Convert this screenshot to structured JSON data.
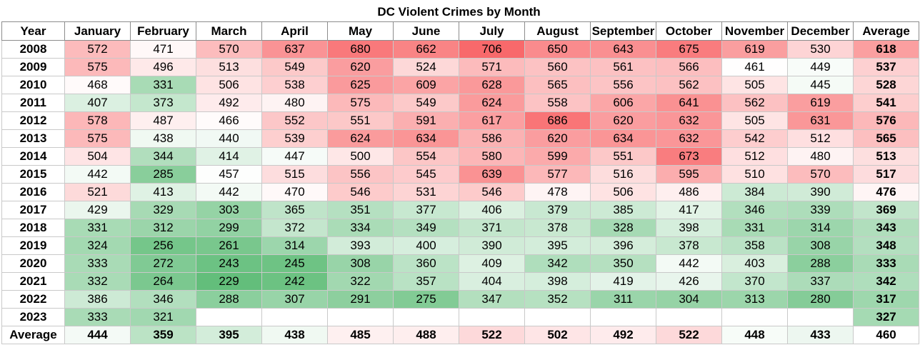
{
  "chart_data": {
    "type": "table",
    "title": "DC Violent Crimes by Month",
    "year_header": "Year",
    "average_label": "Average",
    "months": [
      "January",
      "February",
      "March",
      "April",
      "May",
      "June",
      "July",
      "August",
      "September",
      "October",
      "November",
      "December"
    ],
    "rows": [
      {
        "year": "2008",
        "values": [
          572,
          471,
          570,
          637,
          680,
          662,
          706,
          650,
          643,
          675,
          619,
          530
        ],
        "average": 618
      },
      {
        "year": "2009",
        "values": [
          575,
          496,
          513,
          549,
          620,
          524,
          571,
          560,
          561,
          566,
          461,
          449
        ],
        "average": 537
      },
      {
        "year": "2010",
        "values": [
          468,
          331,
          506,
          538,
          625,
          609,
          628,
          565,
          556,
          562,
          505,
          445
        ],
        "average": 528
      },
      {
        "year": "2011",
        "values": [
          407,
          373,
          492,
          480,
          575,
          549,
          624,
          558,
          606,
          641,
          562,
          619
        ],
        "average": 541
      },
      {
        "year": "2012",
        "values": [
          578,
          487,
          466,
          552,
          551,
          591,
          617,
          686,
          620,
          632,
          505,
          631
        ],
        "average": 576
      },
      {
        "year": "2013",
        "values": [
          575,
          438,
          440,
          539,
          624,
          634,
          586,
          620,
          634,
          632,
          542,
          512
        ],
        "average": 565
      },
      {
        "year": "2014",
        "values": [
          504,
          344,
          414,
          447,
          500,
          554,
          580,
          599,
          551,
          673,
          512,
          480
        ],
        "average": 513
      },
      {
        "year": "2015",
        "values": [
          442,
          285,
          457,
          515,
          556,
          545,
          639,
          577,
          516,
          595,
          510,
          570
        ],
        "average": 517
      },
      {
        "year": "2016",
        "values": [
          521,
          413,
          442,
          470,
          546,
          531,
          546,
          478,
          506,
          486,
          384,
          390
        ],
        "average": 476
      },
      {
        "year": "2017",
        "values": [
          429,
          329,
          303,
          365,
          351,
          377,
          406,
          379,
          385,
          417,
          346,
          339
        ],
        "average": 369
      },
      {
        "year": "2018",
        "values": [
          331,
          312,
          299,
          372,
          334,
          349,
          371,
          378,
          328,
          398,
          331,
          314
        ],
        "average": 343
      },
      {
        "year": "2019",
        "values": [
          324,
          256,
          261,
          314,
          393,
          400,
          390,
          395,
          396,
          378,
          358,
          308
        ],
        "average": 348
      },
      {
        "year": "2020",
        "values": [
          333,
          272,
          243,
          245,
          308,
          360,
          409,
          342,
          350,
          442,
          403,
          288
        ],
        "average": 333
      },
      {
        "year": "2021",
        "values": [
          332,
          264,
          229,
          242,
          322,
          357,
          404,
          398,
          419,
          426,
          370,
          337
        ],
        "average": 342
      },
      {
        "year": "2022",
        "values": [
          386,
          346,
          288,
          307,
          291,
          275,
          347,
          352,
          311,
          304,
          313,
          280
        ],
        "average": 317
      },
      {
        "year": "2023",
        "values": [
          333,
          321,
          null,
          null,
          null,
          null,
          null,
          null,
          null,
          null,
          null,
          null
        ],
        "average": 327
      }
    ],
    "month_averages": [
      444,
      359,
      395,
      438,
      485,
      488,
      522,
      502,
      492,
      522,
      448,
      433
    ],
    "overall_average": 460,
    "color_scale": {
      "low_color": "#63be7b",
      "mid_color": "#ffffff",
      "high_color": "#f8696b",
      "min": 229,
      "mid": 460,
      "max": 706
    }
  }
}
